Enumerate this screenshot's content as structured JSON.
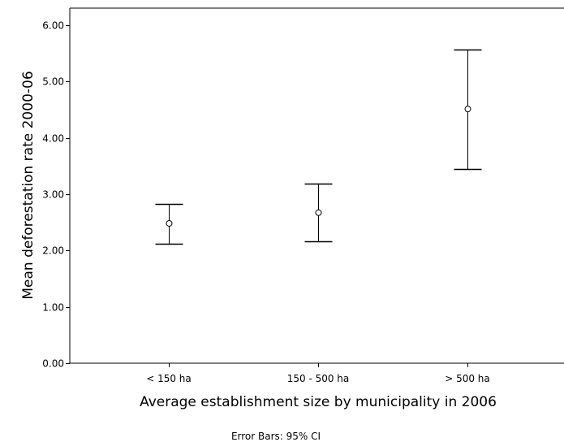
{
  "chart_data": {
    "type": "scatter",
    "error_bars": "95% CI",
    "categories": [
      "< 150 ha",
      "150 - 500 ha",
      "> 500 ha"
    ],
    "means": [
      2.48,
      2.67,
      4.51
    ],
    "ci_lower": [
      2.12,
      2.16,
      3.45
    ],
    "ci_upper": [
      2.83,
      3.18,
      5.57
    ],
    "xlabel": "Average establishment size by municipality in 2006",
    "ylabel": "Mean deforestation rate 2000-06",
    "ylim": [
      0,
      6
    ],
    "yticks": [
      "0.00",
      "1.00",
      "2.00",
      "3.00",
      "4.00",
      "5.00",
      "6.00"
    ],
    "footnote": "Error Bars: 95% CI",
    "grid": false
  }
}
